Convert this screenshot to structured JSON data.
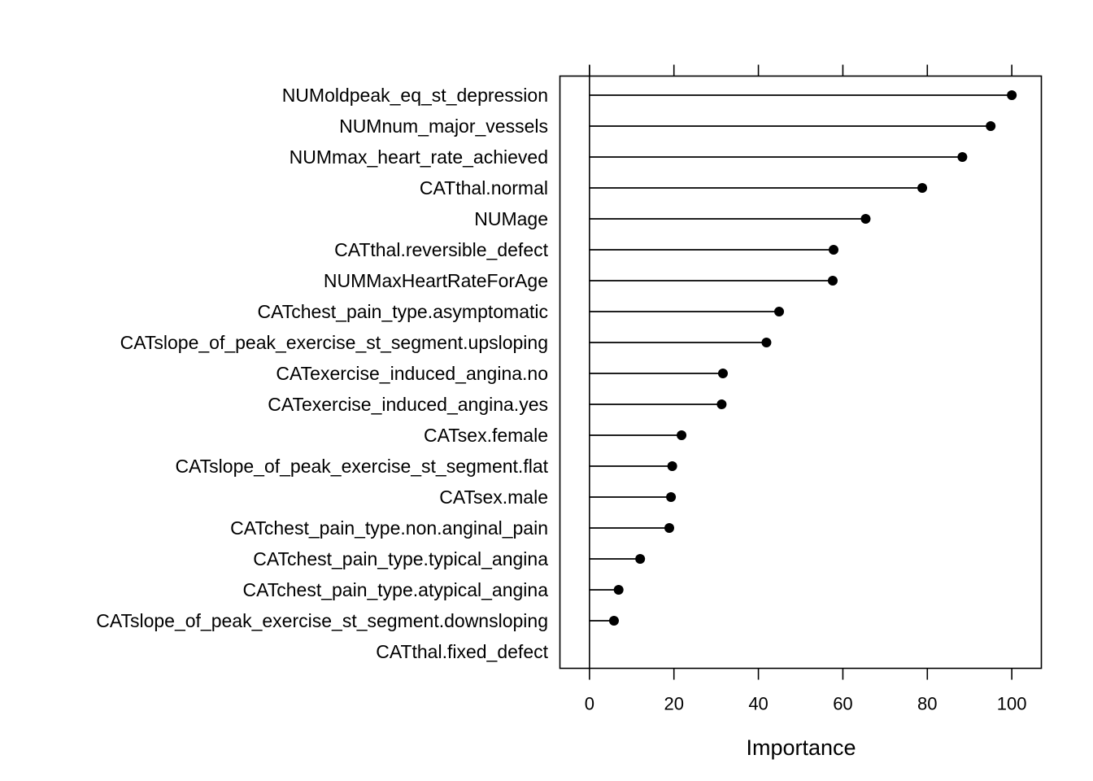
{
  "chart_data": {
    "type": "dotplot",
    "xlabel": "Importance",
    "ylabel": "",
    "title": "",
    "xlim": [
      -7,
      107
    ],
    "x_ticks": [
      0,
      20,
      40,
      60,
      80,
      100
    ],
    "grid": false,
    "legend": "none",
    "categories": [
      "NUMoldpeak_eq_st_depression",
      "NUMnum_major_vessels",
      "NUMmax_heart_rate_achieved",
      "CATthal.normal",
      "NUMage",
      "CATthal.reversible_defect",
      "NUMMaxHeartRateForAge",
      "CATchest_pain_type.asymptomatic",
      "CATslope_of_peak_exercise_st_segment.upsloping",
      "CATexercise_induced_angina.no",
      "CATexercise_induced_angina.yes",
      "CATsex.female",
      "CATslope_of_peak_exercise_st_segment.flat",
      "CATsex.male",
      "CATchest_pain_type.non.anginal_pain",
      "CATchest_pain_type.typical_angina",
      "CATchest_pain_type.atypical_angina",
      "CATslope_of_peak_exercise_st_segment.downsloping",
      "CATthal.fixed_defect"
    ],
    "values": [
      100,
      95,
      88.3,
      78.8,
      65.4,
      57.8,
      57.6,
      44.9,
      41.9,
      31.6,
      31.3,
      21.8,
      19.6,
      19.3,
      18.9,
      12,
      6.9,
      5.8,
      0
    ]
  }
}
